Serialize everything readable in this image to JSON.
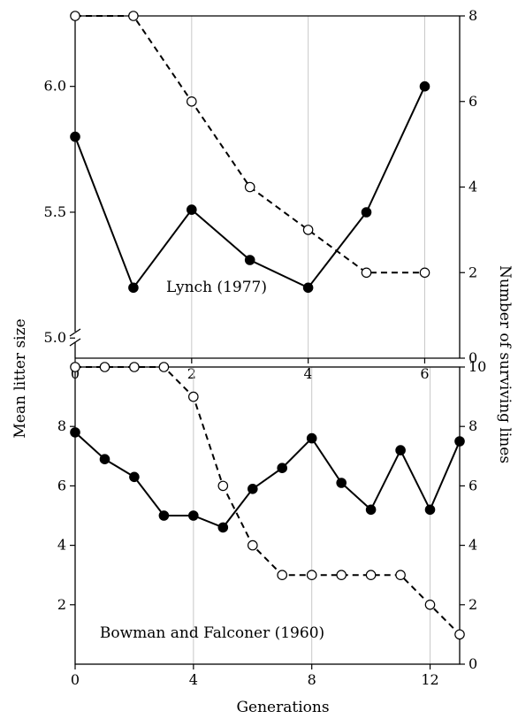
{
  "shared": {
    "left_ylabel": "Mean litter size",
    "right_ylabel": "Number of surviving lines",
    "xlabel": "Generations"
  },
  "chart_data": [
    {
      "type": "line",
      "annotation": "Lynch (1977)",
      "xlim": [
        0,
        6.6
      ],
      "xticks": [
        0,
        2,
        4,
        6
      ],
      "ylim": [
        4.92,
        6.28
      ],
      "yticks": [
        5.0,
        5.5,
        6.0
      ],
      "ytick_labels": [
        "5.0",
        "5.5",
        "6.0"
      ],
      "y2lim": [
        0,
        8
      ],
      "y2ticks": [
        0,
        2,
        4,
        6,
        8
      ],
      "axis_break": true,
      "grid": "vertical",
      "series": [
        {
          "axis": "left",
          "style": "solid-filled",
          "x": [
            0,
            1,
            2,
            3,
            4,
            5,
            6
          ],
          "y": [
            5.8,
            5.2,
            5.51,
            5.31,
            5.2,
            5.5,
            6.0
          ]
        },
        {
          "axis": "right",
          "style": "dashed-open",
          "x": [
            0,
            1,
            2,
            3,
            4,
            5,
            6
          ],
          "y": [
            8,
            8,
            6,
            4,
            3,
            2,
            2
          ]
        }
      ]
    },
    {
      "type": "line",
      "annotation": "Bowman and Falconer (1960)",
      "xlim": [
        0,
        13
      ],
      "xticks": [
        0,
        4,
        8,
        12
      ],
      "ylim": [
        0,
        10
      ],
      "yticks": [
        2,
        4,
        6,
        8
      ],
      "ytick_labels": [
        "2",
        "4",
        "6",
        "8"
      ],
      "y2lim": [
        0,
        10
      ],
      "y2ticks": [
        0,
        2,
        4,
        6,
        8,
        10
      ],
      "axis_break": false,
      "grid": "vertical",
      "series": [
        {
          "axis": "left",
          "style": "solid-filled",
          "x": [
            0,
            1,
            2,
            3,
            4,
            5,
            6,
            7,
            8,
            9,
            10,
            11,
            12,
            13
          ],
          "y": [
            7.8,
            6.9,
            6.3,
            5.0,
            5.0,
            4.6,
            5.9,
            6.6,
            7.6,
            6.1,
            5.2,
            7.2,
            5.2,
            7.5
          ]
        },
        {
          "axis": "right",
          "style": "dashed-open",
          "x": [
            0,
            1,
            2,
            3,
            4,
            5,
            6,
            7,
            8,
            9,
            10,
            11,
            12,
            13
          ],
          "y": [
            10,
            10,
            10,
            10,
            9,
            6,
            4,
            3,
            3,
            3,
            3,
            3,
            2,
            1
          ]
        }
      ]
    }
  ]
}
